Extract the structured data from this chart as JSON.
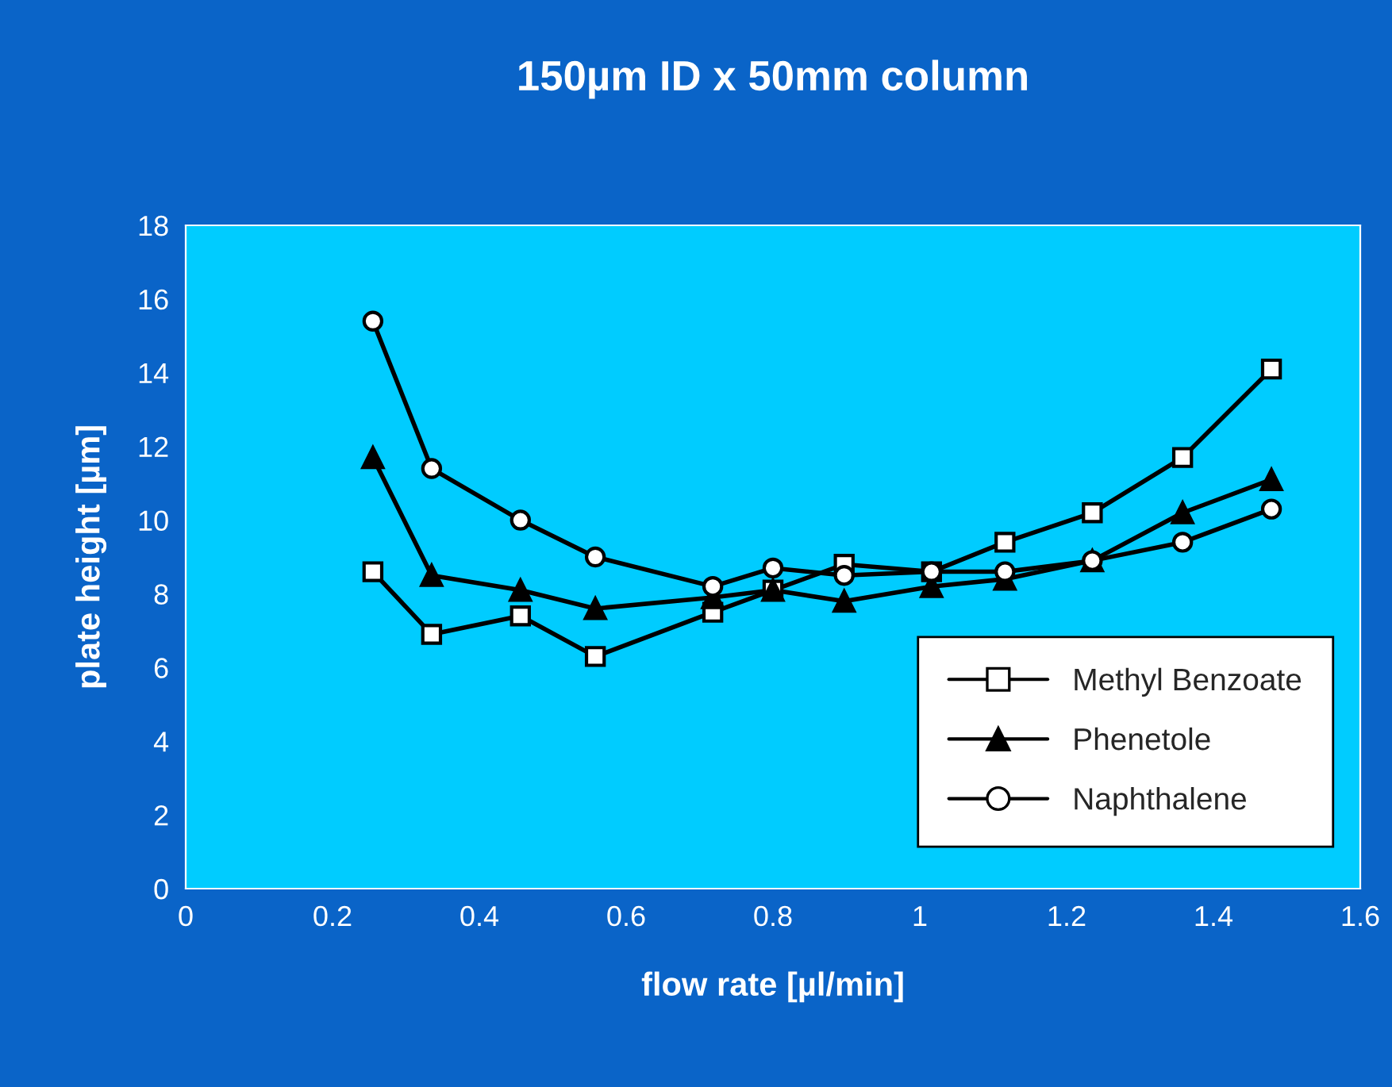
{
  "chart_data": {
    "type": "line",
    "title": "150µm ID x 50mm column",
    "xlabel": "flow rate [µl/min]",
    "ylabel": "plate height [µm]",
    "x": [
      0.255,
      0.335,
      0.456,
      0.558,
      0.718,
      0.8,
      0.897,
      1.016,
      1.116,
      1.235,
      1.358,
      1.479
    ],
    "series": [
      {
        "name": "Methyl Benzoate",
        "color": "#000000",
        "marker": "square",
        "values": [
          8.6,
          6.9,
          7.4,
          6.3,
          7.5,
          8.1,
          8.8,
          8.6,
          9.4,
          10.2,
          11.7,
          14.1
        ]
      },
      {
        "name": "Phenetole",
        "color": "#000000",
        "marker": "triangle",
        "values": [
          11.7,
          8.5,
          8.1,
          7.6,
          7.9,
          8.1,
          7.8,
          8.2,
          8.4,
          8.9,
          10.2,
          11.1
        ]
      },
      {
        "name": "Naphthalene",
        "color": "#000000",
        "marker": "circle",
        "values": [
          15.4,
          11.4,
          10.0,
          9.0,
          8.2,
          8.7,
          8.5,
          8.6,
          8.6,
          8.9,
          9.4,
          10.3
        ]
      }
    ],
    "xlim": [
      0,
      1.6
    ],
    "xticks": [
      0,
      0.2,
      0.4,
      0.6,
      0.8,
      1,
      1.2,
      1.4,
      1.6
    ],
    "ylim": [
      0,
      18
    ],
    "yticks": [
      0,
      2,
      4,
      6,
      8,
      10,
      12,
      14,
      16,
      18
    ],
    "grid": false,
    "legend": "bottom right",
    "line_style": "solid"
  }
}
